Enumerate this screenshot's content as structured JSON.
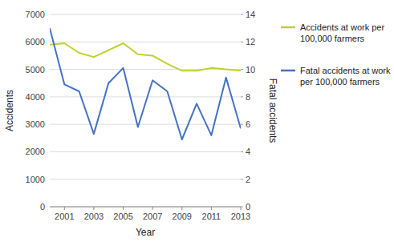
{
  "chart_data": {
    "type": "line",
    "x": [
      2000,
      2001,
      2002,
      2003,
      2004,
      2005,
      2006,
      2007,
      2008,
      2009,
      2010,
      2011,
      2012,
      2013
    ],
    "series": [
      {
        "name": "Accidents at work per 100,000 farmers",
        "color": "#bfd130",
        "values": [
          5900,
          5950,
          5600,
          5450,
          5700,
          5950,
          5550,
          5500,
          5200,
          4950,
          4950,
          5050,
          5000,
          4950
        ]
      },
      {
        "name": "Fatal accidents at work per 100,000 farmers",
        "color": "#4472c4",
        "values": [
          6500,
          4450,
          4200,
          2650,
          4500,
          5050,
          2900,
          4600,
          4200,
          2450,
          3750,
          2600,
          4700,
          2850
        ]
      }
    ],
    "x_label": "Year",
    "y_label": "Accidents",
    "y2_label": "Fatal accidents",
    "xlim": [
      2000,
      2013
    ],
    "xticks": [
      2001,
      2003,
      2005,
      2007,
      2009,
      2011,
      2013
    ],
    "ylim": [
      0,
      7000
    ],
    "yticks": [
      0,
      1000,
      2000,
      3000,
      4000,
      5000,
      6000,
      7000
    ],
    "y2lim": [
      0,
      14
    ],
    "y2ticks": [
      0,
      2,
      4,
      6,
      8,
      10,
      12,
      14
    ],
    "grid": true,
    "legend": "right"
  }
}
